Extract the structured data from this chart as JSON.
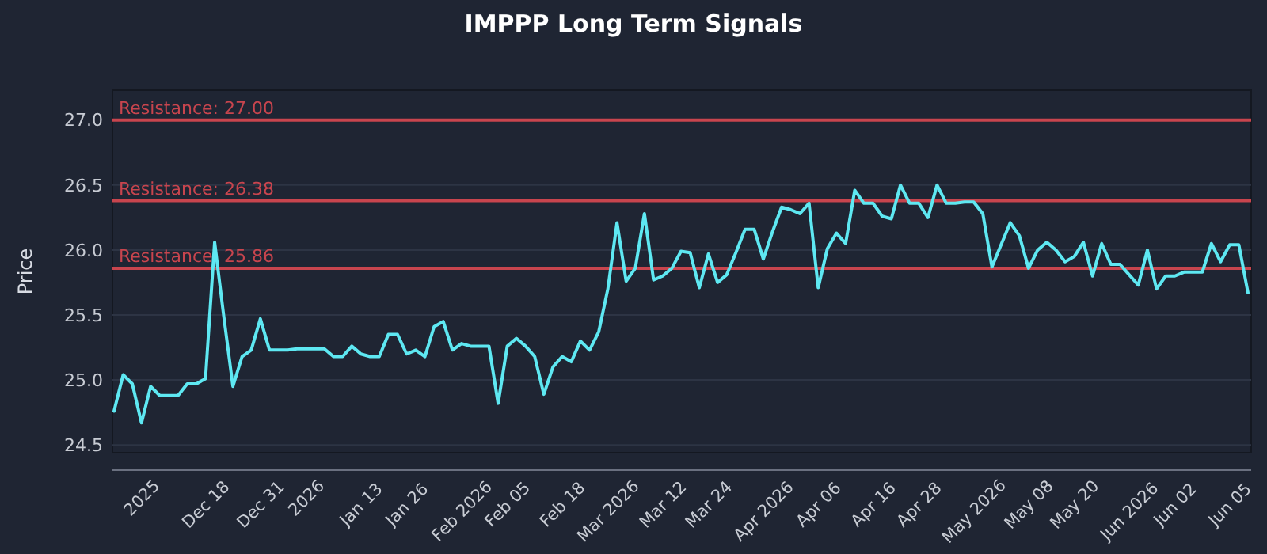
{
  "chart_data": {
    "type": "line",
    "title": "IMPPP Long Term Signals",
    "ylabel": "Price",
    "categories": [
      null,
      null,
      null,
      "2025",
      null,
      null,
      null,
      null,
      null,
      null,
      "Dec 18",
      null,
      null,
      null,
      null,
      null,
      "Dec 31",
      null,
      null,
      null,
      null,
      "2026",
      null,
      null,
      null,
      null,
      null,
      "Jan 13",
      null,
      null,
      null,
      null,
      "Jan 26",
      null,
      null,
      null,
      null,
      null,
      "Feb 2026",
      null,
      null,
      null,
      null,
      "Feb 05",
      null,
      null,
      null,
      null,
      null,
      "Feb 18",
      null,
      null,
      null,
      null,
      "Mar 2026",
      null,
      null,
      null,
      null,
      null,
      "Mar 12",
      null,
      null,
      null,
      null,
      "Mar 24",
      null,
      null,
      null,
      null,
      null,
      "Apr 2026",
      null,
      null,
      null,
      null,
      null,
      "Apr 06",
      null,
      null,
      null,
      null,
      null,
      "Apr 16",
      null,
      null,
      null,
      null,
      "Apr 28",
      null,
      null,
      null,
      null,
      null,
      "May 2026",
      null,
      null,
      null,
      null,
      null,
      "May 08",
      null,
      null,
      null,
      null,
      "May 20",
      null,
      null,
      null,
      null,
      null,
      "Jun 2026",
      null,
      null,
      null,
      null,
      "Jun 02",
      null,
      null,
      null,
      null,
      null,
      "Jun 05",
      null,
      null
    ],
    "series": [
      {
        "color": "#5ee8f2",
        "values": [
          24.76,
          25.04,
          24.97,
          24.67,
          24.95,
          24.88,
          24.88,
          24.88,
          24.97,
          24.97,
          25.01,
          26.06,
          25.49,
          24.95,
          25.18,
          25.23,
          25.47,
          25.23,
          25.23,
          25.23,
          25.24,
          25.24,
          25.24,
          25.24,
          25.18,
          25.18,
          25.26,
          25.2,
          25.18,
          25.18,
          25.35,
          25.35,
          25.2,
          25.23,
          25.18,
          25.41,
          25.45,
          25.23,
          25.28,
          25.26,
          25.26,
          25.26,
          24.82,
          25.26,
          25.32,
          25.26,
          25.18,
          24.89,
          25.1,
          25.18,
          25.14,
          25.3,
          25.23,
          25.37,
          25.7,
          26.21,
          25.76,
          25.86,
          26.28,
          25.77,
          25.8,
          25.86,
          25.99,
          25.98,
          25.71,
          25.97,
          25.75,
          25.81,
          25.98,
          26.16,
          26.16,
          25.93,
          26.14,
          26.33,
          26.31,
          26.28,
          26.36,
          25.71,
          26.01,
          26.13,
          26.05,
          26.46,
          26.36,
          26.36,
          26.26,
          26.24,
          26.5,
          26.36,
          26.36,
          26.25,
          26.5,
          26.36,
          26.36,
          26.37,
          26.37,
          26.28,
          25.87,
          26.04,
          26.21,
          26.11,
          25.86,
          26.0,
          26.06,
          26.0,
          25.91,
          25.95,
          26.06,
          25.8,
          26.05,
          25.89,
          25.89,
          25.81,
          25.73,
          26.0,
          25.7,
          25.8,
          25.8,
          25.83,
          25.83,
          25.83,
          26.05,
          25.91,
          26.04,
          26.04,
          25.67
        ]
      }
    ],
    "ylim": [
      24.44,
      27.23
    ],
    "yticks": [
      24.5,
      {
        "value": 25,
        "label": "25.0"
      },
      25.5,
      {
        "value": 26,
        "label": "26.0"
      },
      26.5,
      {
        "value": 27,
        "label": "27.0"
      }
    ],
    "grid": "y",
    "line_style": "solid",
    "ref_lines": [
      {
        "axis": "y",
        "value": 27.0,
        "label": "Resistance: 27.00",
        "color": "#c8454e"
      },
      {
        "axis": "y",
        "value": 26.38,
        "label": "Resistance: 26.38",
        "color": "#c8454e"
      },
      {
        "axis": "y",
        "value": 25.86,
        "label": "Resistance: 25.86",
        "color": "#c8454e"
      }
    ]
  }
}
